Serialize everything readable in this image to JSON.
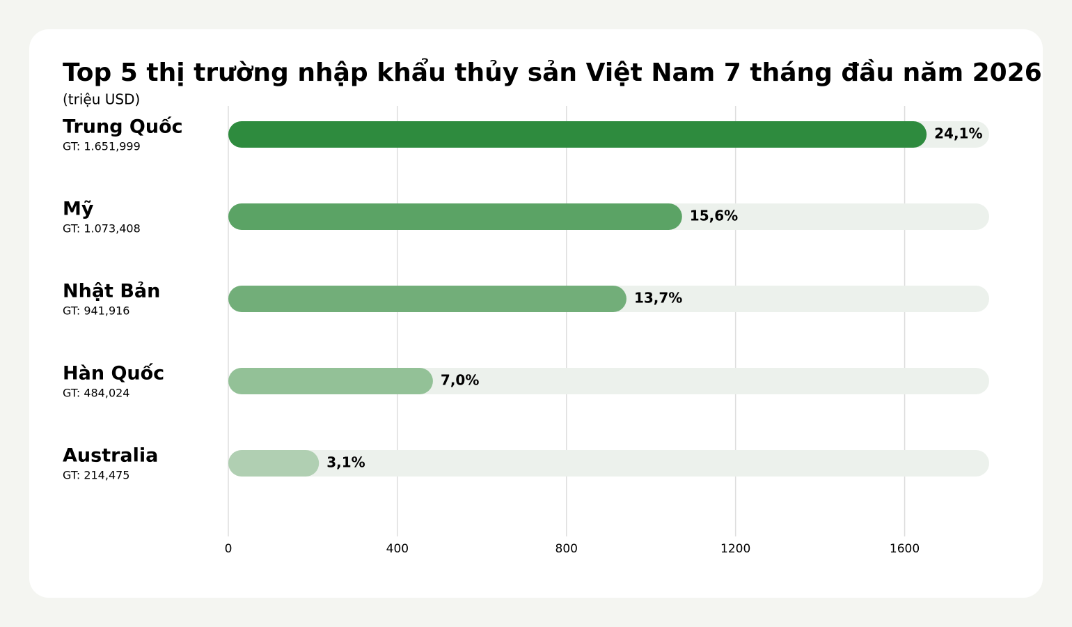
{
  "chart_data": {
    "type": "hbar",
    "title": "Top 5 thị trường nhập khẩu thủy sản Việt Nam 7 tháng đầu năm 2026",
    "subtitle": "(triệu USD)",
    "categories": [
      "Trung Quốc",
      "Mỹ",
      "Nhật Bản",
      "Hàn Quốc",
      "Australia"
    ],
    "values": [
      1651.999,
      1073.408,
      941.916,
      484.024,
      214.475
    ],
    "value_labels": [
      "GT: 1.651,999",
      "GT: 1.073,408",
      "GT: 941,916",
      "GT: 484,024",
      "GT: 214,475"
    ],
    "shares": [
      24.1,
      15.6,
      13.7,
      7.0,
      3.1
    ],
    "share_labels": [
      "24,1%",
      "15,6%",
      "13,7%",
      "7,0%",
      "3,1%"
    ],
    "colors": [
      "#2e8b3e",
      "#5ba365",
      "#72ae79",
      "#93c197",
      "#b0cfb2"
    ],
    "track_color": "#ecf1ec",
    "label_color": "#2e8b3e",
    "xlim": [
      0,
      1800
    ],
    "xticks": [
      0,
      400,
      800,
      1200,
      1600
    ],
    "grid": true
  }
}
